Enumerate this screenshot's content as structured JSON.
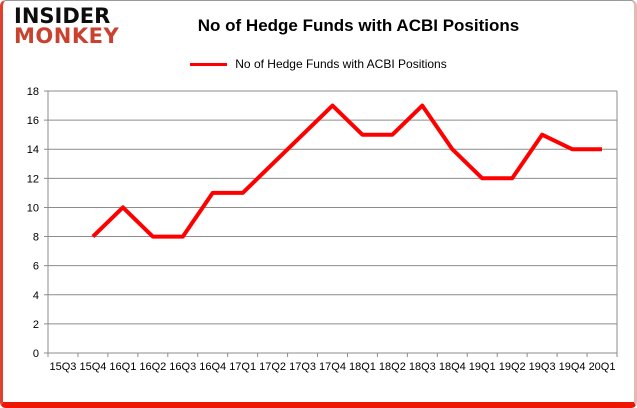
{
  "logo": {
    "line1": "INSIDER",
    "line2": "MONKEY"
  },
  "header": {
    "title": "No of Hedge Funds with ACBI Positions"
  },
  "legend": {
    "label": "No of Hedge Funds with ACBI Positions"
  },
  "colors": {
    "series": "#ff0000",
    "grid": "#8c8c8c",
    "axis": "#8c8c8c",
    "text": "#000000",
    "logo_black": "#0d0d0d",
    "logo_red": "#c9412f",
    "frame_red": "#ee1605"
  },
  "chart_data": {
    "type": "line",
    "title": "No of Hedge Funds with ACBI Positions",
    "categories": [
      "15Q3",
      "15Q4",
      "16Q1",
      "16Q2",
      "16Q3",
      "16Q4",
      "17Q1",
      "17Q2",
      "17Q3",
      "17Q4",
      "18Q1",
      "18Q2",
      "18Q3",
      "18Q4",
      "19Q1",
      "19Q2",
      "19Q3",
      "19Q4",
      "20Q1"
    ],
    "series": [
      {
        "name": "No of Hedge Funds with ACBI Positions",
        "color": "#ff0000",
        "values": [
          null,
          8,
          10,
          8,
          8,
          11,
          11,
          13,
          15,
          17,
          15,
          15,
          17,
          14,
          12,
          12,
          15,
          14,
          14
        ]
      }
    ],
    "ylim": [
      0,
      18
    ],
    "ytick_step": 2,
    "grid": "horizontal",
    "legend_position": "top-center"
  }
}
